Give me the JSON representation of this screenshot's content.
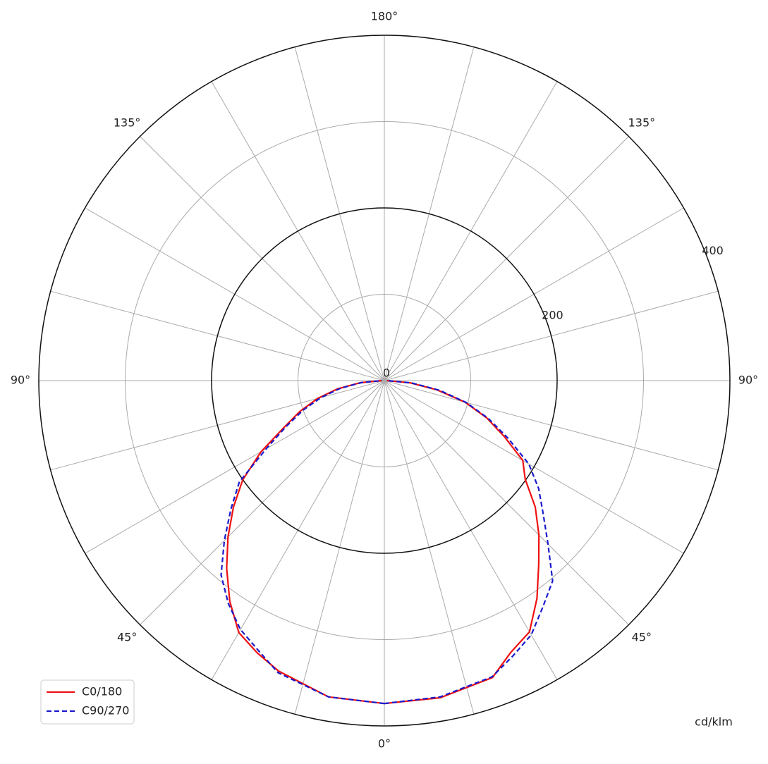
{
  "chart_data": {
    "type": "polar",
    "unit_label": "cd/klm",
    "rlim": [
      0,
      400
    ],
    "rticks": [
      0,
      200,
      400
    ],
    "rminor": [
      100,
      300
    ],
    "spoke_step": 15,
    "angle_ticks_right": [
      {
        "value": 0,
        "label": "0°"
      },
      {
        "value": 45,
        "label": "45°"
      },
      {
        "value": 90,
        "label": "90°"
      },
      {
        "value": 135,
        "label": "135°"
      },
      {
        "value": 180,
        "label": "180°"
      }
    ],
    "angle_ticks_left": [
      {
        "value": 45,
        "label": "45°"
      },
      {
        "value": 90,
        "label": "90°"
      },
      {
        "value": 135,
        "label": "135°"
      }
    ],
    "angles": [
      0,
      10,
      20,
      25,
      30,
      35,
      40,
      45,
      50,
      55,
      60,
      65,
      70,
      75,
      80,
      85,
      90
    ],
    "legend": "lower left",
    "series": [
      {
        "name": "C0/180",
        "color": "#ee1111",
        "dashed": false,
        "values_right": [
          374,
          373,
          366,
          347,
          336,
          308,
          278,
          253,
          228,
          199,
          185,
          153,
          126,
          97,
          62,
          30,
          3
        ],
        "values_left": [
          374,
          372,
          358,
          348,
          337,
          312,
          284,
          256,
          228,
          200,
          165,
          128,
          104,
          80,
          55,
          28,
          3
        ]
      },
      {
        "name": "C90/270",
        "color": "#1a1acc",
        "dashed": true,
        "values_right": [
          374,
          372,
          365,
          352,
          340,
          320,
          303,
          268,
          240,
          218,
          193,
          158,
          128,
          98,
          65,
          32,
          3
        ],
        "values_left": [
          374,
          372,
          360,
          345,
          333,
          315,
          294,
          262,
          232,
          205,
          158,
          125,
          100,
          76,
          52,
          27,
          3
        ]
      }
    ]
  }
}
